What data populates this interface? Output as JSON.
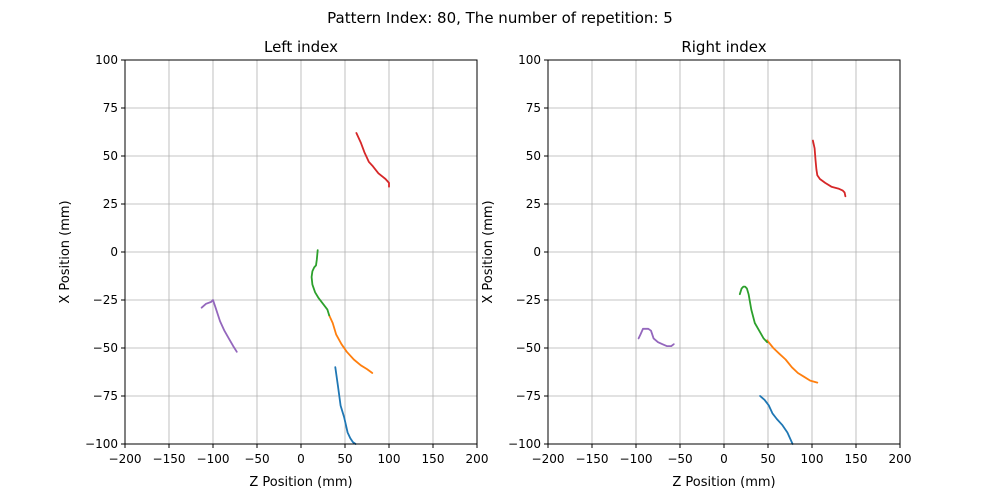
{
  "suptitle": "Pattern Index: 80, The number of repetition: 5",
  "chart_data": [
    {
      "type": "line",
      "title": "Left index",
      "xlabel": "Z Position (mm)",
      "ylabel": "X Position (mm)",
      "xlim": [
        -200,
        200
      ],
      "ylim": [
        100,
        -100
      ],
      "xticks": [
        -200,
        -150,
        -100,
        -50,
        0,
        50,
        100,
        150,
        200
      ],
      "yticks": [
        -100,
        -75,
        -50,
        -25,
        0,
        25,
        50,
        75,
        100
      ],
      "xtick_labels": [
        "−200",
        "−150",
        "−100",
        "−50",
        "0",
        "50",
        "100",
        "150",
        "200"
      ],
      "ytick_labels": [
        "−100",
        "−75",
        "−50",
        "−25",
        "0",
        "25",
        "50",
        "75",
        "100"
      ],
      "grid": true,
      "series": [
        {
          "color": "#1f77b4",
          "x": [
            39,
            42,
            45,
            49,
            53,
            56,
            59,
            62
          ],
          "y": [
            -60,
            -70,
            -80,
            -86,
            -94,
            -97,
            -99,
            -100
          ]
        },
        {
          "color": "#ff7f0e",
          "x": [
            32,
            36,
            40,
            46,
            52,
            60,
            68,
            75,
            81
          ],
          "y": [
            -33,
            -37,
            -43,
            -48,
            -52,
            -56,
            -59,
            -61,
            -63
          ]
        },
        {
          "color": "#2ca02c",
          "x": [
            19,
            18,
            17,
            15,
            13,
            12,
            13,
            16,
            20,
            25,
            30,
            32
          ],
          "y": [
            1,
            -4,
            -7,
            -8,
            -10,
            -13,
            -17,
            -21,
            -24,
            -27,
            -30,
            -33
          ]
        },
        {
          "color": "#d62728",
          "x": [
            63,
            68,
            72,
            77,
            81,
            88,
            96,
            100,
            100
          ],
          "y": [
            62,
            57,
            52,
            47,
            45,
            41,
            38,
            36,
            34
          ]
        },
        {
          "color": "#9467bd",
          "x": [
            -113,
            -108,
            -102,
            -100,
            -97,
            -92,
            -87,
            -82,
            -77,
            -73
          ],
          "y": [
            -29,
            -27,
            -26,
            -25,
            -29,
            -36,
            -41,
            -45,
            -49,
            -52
          ]
        }
      ]
    },
    {
      "type": "line",
      "title": "Right index",
      "xlabel": "Z Position (mm)",
      "ylabel": "X Position (mm)",
      "xlim": [
        -200,
        200
      ],
      "ylim": [
        100,
        -100
      ],
      "xticks": [
        -200,
        -150,
        -100,
        -50,
        0,
        50,
        100,
        150,
        200
      ],
      "yticks": [
        -100,
        -75,
        -50,
        -25,
        0,
        25,
        50,
        75,
        100
      ],
      "xtick_labels": [
        "−200",
        "−150",
        "−100",
        "−50",
        "0",
        "50",
        "100",
        "150",
        "200"
      ],
      "ytick_labels": [
        "−100",
        "−75",
        "−50",
        "−25",
        "0",
        "25",
        "50",
        "75",
        "100"
      ],
      "grid": true,
      "series": [
        {
          "color": "#1f77b4",
          "x": [
            41,
            46,
            51,
            55,
            60,
            66,
            72,
            76,
            78
          ],
          "y": [
            -75,
            -77,
            -80,
            -84,
            -87,
            -90,
            -94,
            -98,
            -100
          ]
        },
        {
          "color": "#ff7f0e",
          "x": [
            49,
            56,
            63,
            70,
            77,
            84,
            91,
            98,
            106
          ],
          "y": [
            -46,
            -50,
            -53,
            -56,
            -60,
            -63,
            -65,
            -67,
            -68
          ]
        },
        {
          "color": "#2ca02c",
          "x": [
            18,
            20,
            22,
            24,
            26,
            28,
            31,
            35,
            40,
            45,
            49
          ],
          "y": [
            -22,
            -19,
            -18,
            -18,
            -19,
            -22,
            -30,
            -37,
            -41,
            -45,
            -47
          ]
        },
        {
          "color": "#d62728",
          "x": [
            101,
            103,
            104,
            105,
            106,
            109,
            115,
            122,
            130,
            135,
            137,
            138
          ],
          "y": [
            58,
            54,
            48,
            43,
            40,
            38,
            36,
            34,
            33,
            32,
            31,
            29
          ]
        },
        {
          "color": "#9467bd",
          "x": [
            -97,
            -95,
            -92,
            -89,
            -86,
            -83,
            -80,
            -75,
            -70,
            -65,
            -60,
            -57
          ],
          "y": [
            -45,
            -43,
            -40,
            -40,
            -40,
            -41,
            -45,
            -47,
            -48,
            -49,
            -49,
            -48
          ]
        }
      ]
    }
  ]
}
